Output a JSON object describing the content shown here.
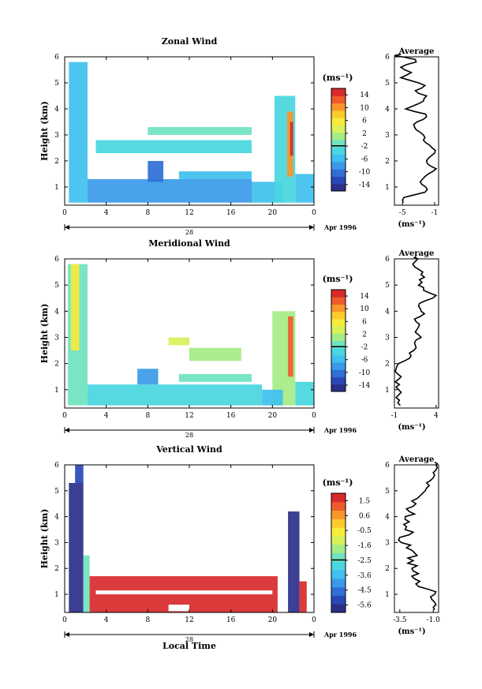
{
  "colors": {
    "text": "#000000",
    "axis": "#000000",
    "colorbar": [
      "#2b2f8a",
      "#2848b5",
      "#2f6fd6",
      "#3a9ae8",
      "#3fc0ee",
      "#49d6e0",
      "#6fe3c0",
      "#a4ec86",
      "#d8f05a",
      "#f7ec3a",
      "#fbcb2c",
      "#f8962a",
      "#ef5a2c",
      "#d82a2a"
    ],
    "data_fill": "#ffee44"
  },
  "chart_data": [
    {
      "type": "heatmap",
      "title": "Zonal Wind",
      "ylabel": "Height (km)",
      "xlabel": "",
      "x_ticks": [
        "0",
        "4",
        "8",
        "12",
        "16",
        "20",
        "0"
      ],
      "y_ticks": [
        "1",
        "2",
        "3",
        "4",
        "5",
        "6"
      ],
      "xlim": [
        0,
        24
      ],
      "ylim": [
        0.3,
        6
      ],
      "date_day": "28",
      "date_label": "Apr 1996",
      "colorbar": {
        "unit": "(ms⁻¹)",
        "ticks": [
          "14",
          "10",
          "6",
          "2",
          "-2",
          "-6",
          "-10",
          "-14"
        ]
      },
      "regions": [
        {
          "x0": 0.4,
          "x1": 2.2,
          "y0": 0.4,
          "y1": 5.8,
          "v": -6
        },
        {
          "x0": 2.2,
          "x1": 18,
          "y0": 0.4,
          "y1": 1.3,
          "v": -8
        },
        {
          "x0": 18,
          "x1": 21,
          "y0": 0.4,
          "y1": 1.2,
          "v": -6
        },
        {
          "x0": 8,
          "x1": 9.5,
          "y0": 1.2,
          "y1": 2.0,
          "v": -9
        },
        {
          "x0": 11,
          "x1": 18,
          "y0": 1.3,
          "y1": 1.6,
          "v": -6
        },
        {
          "x0": 3,
          "x1": 18,
          "y0": 2.3,
          "y1": 2.8,
          "v": -3
        },
        {
          "x0": 8,
          "x1": 18,
          "y0": 3.0,
          "y1": 3.3,
          "v": -2
        },
        {
          "x0": 20.2,
          "x1": 22.2,
          "y0": 0.4,
          "y1": 4.5,
          "v": -4
        },
        {
          "x0": 21.4,
          "x1": 22.0,
          "y0": 1.4,
          "y1": 3.9,
          "v": 8
        },
        {
          "x0": 21.7,
          "x1": 22.0,
          "y0": 2.2,
          "y1": 3.5,
          "v": 13
        },
        {
          "x0": 22.2,
          "x1": 24,
          "y0": 0.4,
          "y1": 1.5,
          "v": -6
        }
      ],
      "profile": {
        "title": "Average",
        "xlabel": "(ms⁻¹)",
        "x_ticks": [
          "-5",
          "-1"
        ],
        "xlim": [
          -6,
          -0.5
        ],
        "y_ticks": [
          "1",
          "2",
          "3",
          "4",
          "5",
          "6"
        ],
        "ylim": [
          0.3,
          6
        ],
        "x": [
          -4.9,
          -5.0,
          -4.8,
          -3.5,
          -2.2,
          -1.9,
          -2.1,
          -2.6,
          -2.8,
          -2.5,
          -2.2,
          -1.8,
          -1.2,
          -0.8,
          -1.5,
          -1.9,
          -2.0,
          -1.8,
          -1.4,
          -1.0,
          -0.9,
          -1.3,
          -1.6,
          -2.1,
          -2.4,
          -2.2,
          -2.4,
          -2.8,
          -3.3,
          -3.5,
          -3.6,
          -3.2,
          -2.4,
          -2.0,
          -2.1,
          -3.5,
          -4.6,
          -3.8,
          -3.0,
          -2.4,
          -2.3,
          -2.0,
          -3.0,
          -3.4,
          -2.6,
          -2.2,
          -3.0,
          -4.1,
          -5.2,
          -4.5,
          -3.9,
          -4.7,
          -5.2,
          -4.5,
          -3.3,
          -3.4,
          -5.0,
          -6.0,
          -5.2
        ],
        "y": [
          0.4,
          0.5,
          0.6,
          0.7,
          0.8,
          0.9,
          1.0,
          1.1,
          1.2,
          1.3,
          1.4,
          1.5,
          1.6,
          1.7,
          1.8,
          1.9,
          2.0,
          2.1,
          2.2,
          2.3,
          2.4,
          2.5,
          2.6,
          2.7,
          2.8,
          2.9,
          3.0,
          3.1,
          3.2,
          3.3,
          3.4,
          3.5,
          3.6,
          3.7,
          3.8,
          3.9,
          4.0,
          4.1,
          4.2,
          4.3,
          4.4,
          4.5,
          4.6,
          4.7,
          4.8,
          4.9,
          5.0,
          5.1,
          5.2,
          5.3,
          5.4,
          5.5,
          5.6,
          5.7,
          5.8,
          5.9,
          6.0,
          6.05,
          6.1
        ]
      }
    },
    {
      "type": "heatmap",
      "title": "Meridional Wind",
      "ylabel": "Height (km)",
      "xlabel": "",
      "x_ticks": [
        "0",
        "4",
        "8",
        "12",
        "16",
        "20",
        "0"
      ],
      "y_ticks": [
        "1",
        "2",
        "3",
        "4",
        "5",
        "6"
      ],
      "xlim": [
        0,
        24
      ],
      "ylim": [
        0.3,
        6
      ],
      "date_day": "28",
      "date_label": "Apr 1996",
      "colorbar": {
        "unit": "(ms⁻¹)",
        "ticks": [
          "14",
          "10",
          "6",
          "2",
          "-2",
          "-6",
          "-10",
          "-14"
        ]
      },
      "regions": [
        {
          "x0": 0.3,
          "x1": 2.2,
          "y0": 0.4,
          "y1": 5.8,
          "v": -2
        },
        {
          "x0": 0.6,
          "x1": 1.4,
          "y0": 2.5,
          "y1": 5.8,
          "v": 5
        },
        {
          "x0": 2.2,
          "x1": 19,
          "y0": 0.4,
          "y1": 1.2,
          "v": -4
        },
        {
          "x0": 7,
          "x1": 9,
          "y0": 1.2,
          "y1": 1.8,
          "v": -7
        },
        {
          "x0": 11,
          "x1": 18,
          "y0": 1.3,
          "y1": 1.6,
          "v": -2
        },
        {
          "x0": 12,
          "x1": 17,
          "y0": 2.1,
          "y1": 2.6,
          "v": 1
        },
        {
          "x0": 10,
          "x1": 12,
          "y0": 2.7,
          "y1": 3.0,
          "v": 2
        },
        {
          "x0": 20,
          "x1": 22.2,
          "y0": 0.4,
          "y1": 4.0,
          "v": 1
        },
        {
          "x0": 21.5,
          "x1": 22.0,
          "y0": 1.5,
          "y1": 3.8,
          "v": 10
        },
        {
          "x0": 19,
          "x1": 21,
          "y0": 0.4,
          "y1": 1.0,
          "v": -6
        },
        {
          "x0": 22.2,
          "x1": 24,
          "y0": 0.4,
          "y1": 1.3,
          "v": -3
        }
      ],
      "profile": {
        "title": "Average",
        "xlabel": "(ms⁻¹)",
        "x_ticks": [
          "-1",
          "4"
        ],
        "xlim": [
          -1,
          4.3
        ],
        "y_ticks": [
          "1",
          "2",
          "3",
          "4",
          "5",
          "6"
        ],
        "ylim": [
          0.3,
          6
        ],
        "x": [
          -0.3,
          -0.6,
          -0.4,
          -0.8,
          -0.5,
          -0.2,
          -0.5,
          -0.8,
          -0.4,
          -0.9,
          -0.5,
          -0.2,
          -0.6,
          -0.9,
          -0.8,
          -0.7,
          -0.5,
          0.2,
          0.8,
          1.0,
          0.8,
          1.3,
          1.6,
          1.5,
          1.4,
          1.6,
          2.2,
          1.9,
          1.5,
          1.7,
          1.9,
          2.0,
          1.6,
          1.4,
          2.1,
          2.6,
          2.2,
          2.1,
          1.9,
          2.0,
          2.7,
          3.6,
          4.0,
          3.2,
          2.5,
          2.5,
          1.9,
          2.3,
          2.0,
          2.6,
          2.2,
          2.4,
          1.9,
          1.4,
          1.2,
          1.5,
          1.8,
          1.4,
          1.6
        ],
        "y": [
          0.4,
          0.5,
          0.6,
          0.7,
          0.8,
          0.9,
          1.0,
          1.1,
          1.2,
          1.3,
          1.4,
          1.5,
          1.6,
          1.7,
          1.8,
          1.9,
          2.0,
          2.1,
          2.2,
          2.3,
          2.4,
          2.5,
          2.6,
          2.7,
          2.8,
          2.9,
          3.0,
          3.1,
          3.2,
          3.3,
          3.4,
          3.5,
          3.6,
          3.7,
          3.8,
          3.9,
          4.0,
          4.1,
          4.2,
          4.3,
          4.4,
          4.5,
          4.6,
          4.7,
          4.8,
          4.9,
          5.0,
          5.1,
          5.2,
          5.3,
          5.4,
          5.5,
          5.6,
          5.7,
          5.8,
          5.9,
          6.0,
          6.05,
          6.1
        ]
      }
    },
    {
      "type": "heatmap",
      "title": "Vertical Wind",
      "ylabel": "Height (km)",
      "xlabel": "Local Time",
      "x_ticks": [
        "0",
        "4",
        "8",
        "12",
        "16",
        "20",
        "0"
      ],
      "y_ticks": [
        "1",
        "2",
        "3",
        "4",
        "5",
        "6"
      ],
      "xlim": [
        0,
        24
      ],
      "ylim": [
        0.3,
        6
      ],
      "date_day": "28",
      "date_label": "Apr 1996",
      "colorbar": {
        "unit": "(ms⁻¹)",
        "ticks": [
          "1.5",
          "0.6",
          "-0.5",
          "-1.6",
          "-2.5",
          "-3.6",
          "-4.5",
          "-5.6"
        ]
      },
      "regions": [
        {
          "x0": 0.4,
          "x1": 1.8,
          "y0": 0.3,
          "y1": 5.3,
          "v": -5.6
        },
        {
          "x0": 1.0,
          "x1": 1.8,
          "y0": 5.3,
          "y1": 6.0,
          "v": -4.6
        },
        {
          "x0": 1.8,
          "x1": 2.4,
          "y0": 0.3,
          "y1": 2.5,
          "v": -2.5
        },
        {
          "x0": 2.4,
          "x1": 20.5,
          "y0": 0.3,
          "y1": 1.7,
          "v": 1.2
        },
        {
          "x0": 21.5,
          "x1": 22.6,
          "y0": 0.3,
          "y1": 4.2,
          "v": -5.2
        },
        {
          "x0": 22.6,
          "x1": 23.3,
          "y0": 0.3,
          "y1": 1.5,
          "v": 1.0
        }
      ],
      "gaps": [
        {
          "x0": 3,
          "x1": 20,
          "y0": 1.0,
          "y1": 1.15
        },
        {
          "x0": 10,
          "x1": 12,
          "y0": 0.35,
          "y1": 0.6
        }
      ],
      "profile": {
        "title": "Average",
        "xlabel": "(ms⁻¹)",
        "x_ticks": [
          "-3.5",
          "-1.0"
        ],
        "xlim": [
          -3.9,
          -0.6
        ],
        "y_ticks": [
          "1",
          "2",
          "3",
          "4",
          "5",
          "6"
        ],
        "ylim": [
          0.3,
          6
        ],
        "x": [
          -0.9,
          -1.0,
          -0.8,
          -0.9,
          -1.1,
          -1.2,
          -0.9,
          -0.8,
          -1.4,
          -2.1,
          -2.3,
          -2.0,
          -2.4,
          -2.6,
          -2.1,
          -2.5,
          -2.6,
          -2.2,
          -2.9,
          -2.5,
          -2.9,
          -2.2,
          -2.4,
          -2.6,
          -3.0,
          -2.7,
          -3.4,
          -3.6,
          -3.5,
          -2.8,
          -2.5,
          -3.1,
          -3.0,
          -3.2,
          -2.8,
          -3.1,
          -3.1,
          -2.4,
          -2.8,
          -3.0,
          -2.5,
          -2.3,
          -2.6,
          -2.2,
          -2.0,
          -1.8,
          -1.6,
          -1.5,
          -1.3,
          -1.5,
          -1.2,
          -1.0,
          -0.9,
          -1.0,
          -0.8,
          -0.7,
          -0.8,
          -0.7,
          -0.9
        ],
        "y": [
          0.4,
          0.5,
          0.6,
          0.7,
          0.8,
          0.9,
          1.0,
          1.1,
          1.2,
          1.3,
          1.4,
          1.5,
          1.6,
          1.7,
          1.8,
          1.9,
          2.0,
          2.1,
          2.2,
          2.3,
          2.4,
          2.5,
          2.6,
          2.7,
          2.8,
          2.9,
          3.0,
          3.1,
          3.2,
          3.3,
          3.4,
          3.5,
          3.6,
          3.7,
          3.8,
          3.9,
          4.0,
          4.1,
          4.2,
          4.3,
          4.4,
          4.5,
          4.6,
          4.7,
          4.8,
          4.9,
          5.0,
          5.1,
          5.2,
          5.3,
          5.4,
          5.5,
          5.6,
          5.7,
          5.8,
          5.9,
          6.0,
          6.05,
          6.1
        ]
      }
    }
  ]
}
